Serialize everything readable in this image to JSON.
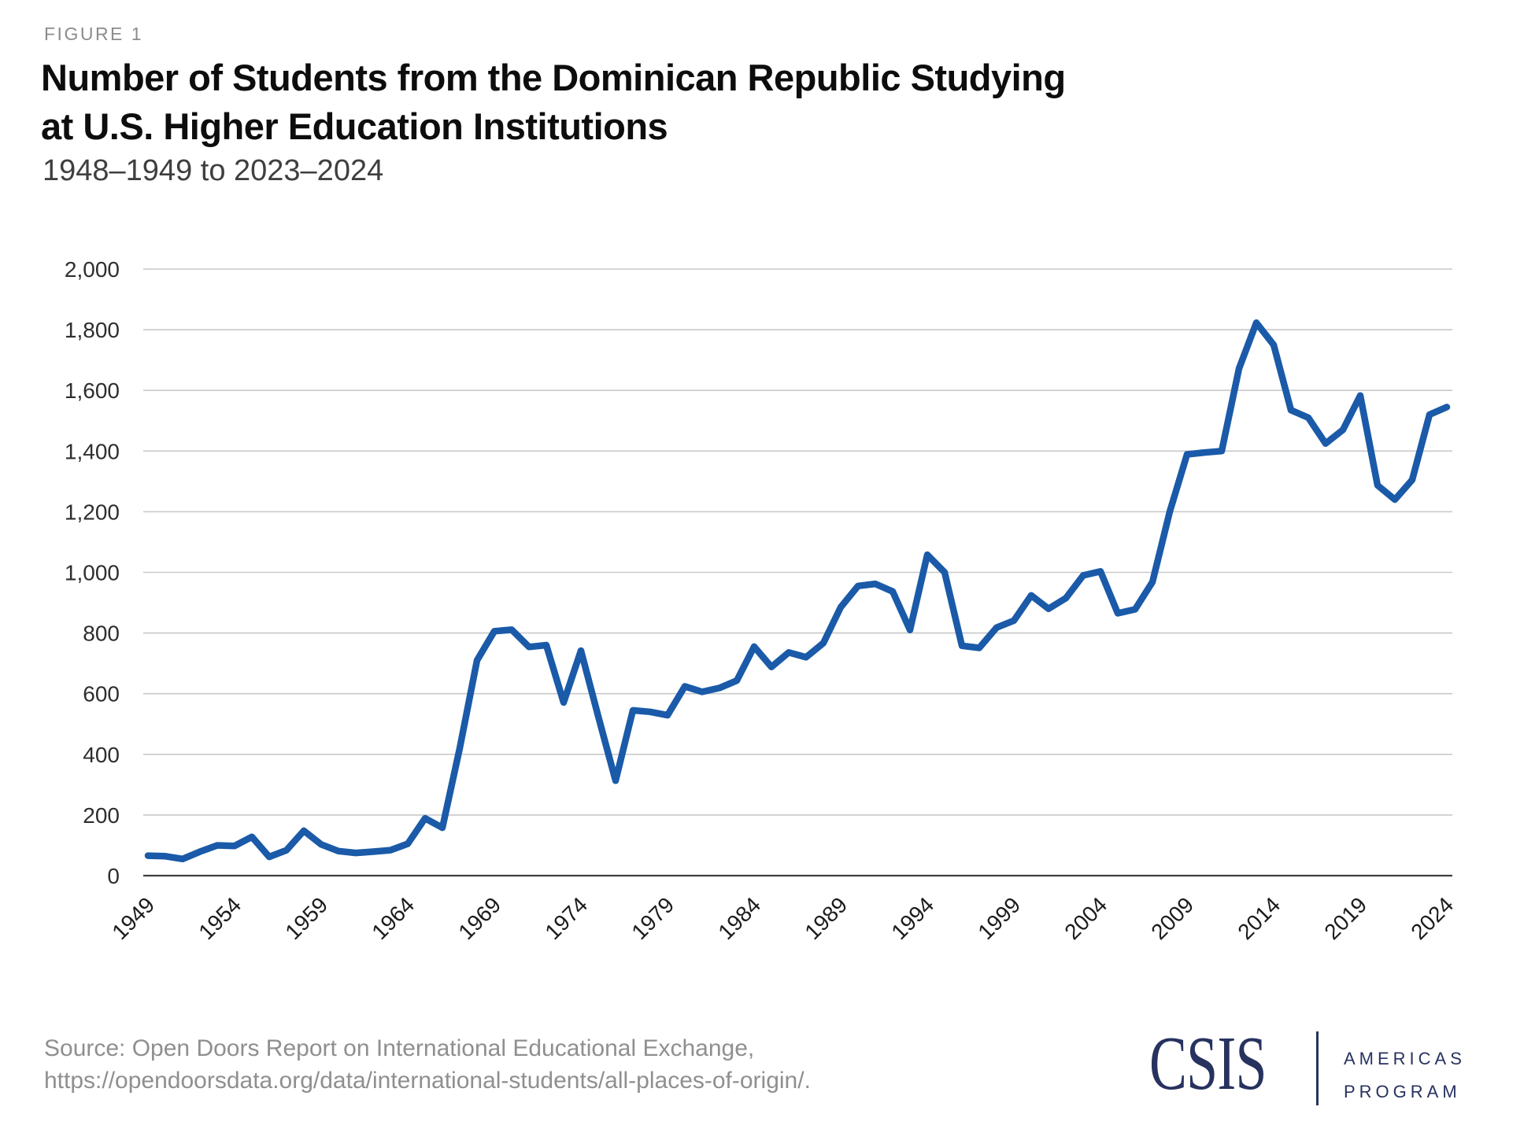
{
  "header": {
    "figure_label": "FIGURE 1",
    "title_line1": "Number of Students from the Dominican Republic Studying",
    "title_line2": "at U.S. Higher Education Institutions",
    "subtitle": "1948–1949 to 2023–2024"
  },
  "chart_data": {
    "type": "line",
    "title": "Number of Students from the Dominican Republic Studying at U.S. Higher Education Institutions",
    "subtitle": "1948-1949 to 2023-2024",
    "xlabel": "",
    "ylabel": "",
    "ylim": [
      0,
      2000
    ],
    "ytick_step": 200,
    "ytick_labels": [
      "0",
      "200",
      "400",
      "600",
      "800",
      "1,000",
      "1,200",
      "1,400",
      "1,600",
      "1,800",
      "2,000"
    ],
    "xticks": [
      1949,
      1954,
      1959,
      1964,
      1969,
      1974,
      1979,
      1984,
      1989,
      1994,
      1999,
      2004,
      2009,
      2014,
      2019,
      2024
    ],
    "grid": true,
    "legend": "none",
    "gridline_color": "#c9c9c9",
    "axis_color": "#3f3f3f",
    "years": [
      1949,
      1950,
      1951,
      1952,
      1953,
      1954,
      1955,
      1956,
      1957,
      1958,
      1959,
      1960,
      1961,
      1962,
      1963,
      1964,
      1965,
      1966,
      1967,
      1968,
      1969,
      1970,
      1971,
      1972,
      1973,
      1974,
      1975,
      1976,
      1977,
      1978,
      1979,
      1980,
      1981,
      1982,
      1983,
      1984,
      1985,
      1986,
      1987,
      1988,
      1989,
      1990,
      1991,
      1992,
      1993,
      1994,
      1995,
      1996,
      1997,
      1998,
      1999,
      2000,
      2001,
      2002,
      2003,
      2004,
      2005,
      2006,
      2007,
      2008,
      2009,
      2010,
      2011,
      2012,
      2013,
      2014,
      2015,
      2016,
      2017,
      2018,
      2019,
      2020,
      2021,
      2022,
      2023,
      2024
    ],
    "series": [
      {
        "name": "Students from the Dominican Republic",
        "color": "#1a5aa8",
        "values": [
          66,
          64,
          55,
          79,
          100,
          98,
          128,
          62,
          84,
          148,
          103,
          81,
          75,
          79,
          84,
          105,
          189,
          158,
          420,
          710,
          806,
          811,
          754,
          760,
          571,
          742,
          525,
          313,
          545,
          540,
          529,
          624,
          606,
          619,
          643,
          755,
          688,
          736,
          720,
          767,
          885,
          955,
          962,
          937,
          810,
          1058,
          1000,
          758,
          751,
          818,
          841,
          924,
          880,
          915,
          990,
          1003,
          865,
          878,
          968,
          1200,
          1389,
          1395,
          1400,
          1672,
          1823,
          1750,
          1535,
          1510,
          1425,
          1470,
          1583,
          1287,
          1240,
          1305,
          1520,
          1545
        ]
      }
    ]
  },
  "footer": {
    "source_line1": "Source: Open Doors Report on International Educational Exchange,",
    "source_line2": "https://opendoorsdata.org/data/international-students/all-places-of-origin/."
  },
  "logo": {
    "wordmark": "CSIS",
    "program_line1": "AMERICAS",
    "program_line2": "PROGRAM",
    "color": "#27325f"
  }
}
